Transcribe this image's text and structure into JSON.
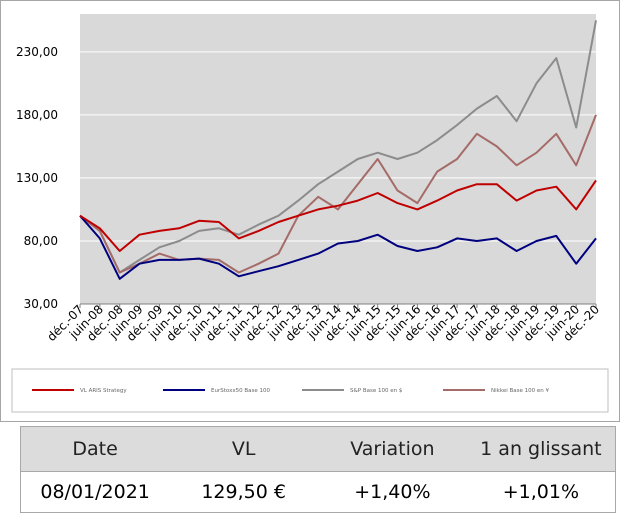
{
  "colors": {
    "plot_bg": "#d9d9d9",
    "vl_aris": "#c00000",
    "eurostoxx": "#00007f",
    "sp": "#8c8c8c",
    "nikkei": "#a56b68"
  },
  "chart_data": {
    "type": "line",
    "xlabel": "",
    "ylabel": "",
    "ylim": [
      30,
      260
    ],
    "grid": true,
    "legend_placement": "bottom",
    "y_ticks": [
      "30,00",
      "80,00",
      "130,00",
      "180,00",
      "230,00"
    ],
    "y_tick_values": [
      30,
      80,
      130,
      180,
      230
    ],
    "x_tick_labels": [
      "déc.-07",
      "juin-08",
      "déc.-08",
      "juin-09",
      "déc.-09",
      "juin-10",
      "déc.-10",
      "juin-11",
      "déc.-11",
      "juin-12",
      "déc.-12",
      "juin-13",
      "déc.-13",
      "juin-14",
      "déc.-14",
      "juin-15",
      "déc.-15",
      "juin-16",
      "déc.-16",
      "juin-17",
      "déc.-17",
      "juin-18",
      "déc.-18",
      "juin-19",
      "déc.-19",
      "juin-20",
      "déc.-20"
    ],
    "x": [
      "déc.-07",
      "juin-08",
      "déc.-08",
      "juin-09",
      "déc.-09",
      "juin-10",
      "déc.-10",
      "juin-11",
      "déc.-11",
      "juin-12",
      "déc.-12",
      "juin-13",
      "déc.-13",
      "juin-14",
      "déc.-14",
      "juin-15",
      "déc.-15",
      "juin-16",
      "déc.-16",
      "juin-17",
      "déc.-17",
      "juin-18",
      "déc.-18",
      "juin-19",
      "déc.-19",
      "juin-20",
      "déc.-20"
    ],
    "series": [
      {
        "name": "VL ARIS Strategy",
        "color_key": "vl_aris",
        "values": [
          100,
          90,
          72,
          85,
          88,
          90,
          96,
          95,
          82,
          88,
          95,
          100,
          105,
          108,
          112,
          118,
          110,
          105,
          112,
          120,
          125,
          125,
          112,
          120,
          123,
          105,
          128
        ]
      },
      {
        "name": "EurStoxx50 Base 100",
        "color_key": "eurostoxx",
        "values": [
          100,
          82,
          50,
          62,
          65,
          65,
          66,
          62,
          52,
          56,
          60,
          65,
          70,
          78,
          80,
          85,
          76,
          72,
          75,
          82,
          80,
          82,
          72,
          80,
          84,
          62,
          82
        ]
      },
      {
        "name": "S&P Base 100 en $",
        "color_key": "sp",
        "values": [
          100,
          88,
          55,
          65,
          75,
          80,
          88,
          90,
          85,
          93,
          100,
          112,
          125,
          135,
          145,
          150,
          145,
          150,
          160,
          172,
          185,
          195,
          175,
          205,
          225,
          170,
          255
        ]
      },
      {
        "name": "Nikkei Base 100 en ¥",
        "color_key": "nikkei",
        "values": [
          100,
          88,
          55,
          62,
          70,
          65,
          66,
          65,
          55,
          62,
          70,
          100,
          115,
          105,
          125,
          145,
          120,
          110,
          135,
          145,
          165,
          155,
          140,
          150,
          165,
          140,
          180
        ]
      }
    ]
  },
  "legend": [
    {
      "label": "VL ARIS Strategy",
      "color_key": "vl_aris"
    },
    {
      "label": "EurStoxx50 Base 100",
      "color_key": "eurostoxx"
    },
    {
      "label": "S&P Base 100 en $",
      "color_key": "sp"
    },
    {
      "label": "Nikkei Base 100 en ¥",
      "color_key": "nikkei"
    }
  ],
  "table": {
    "headers": [
      "Date",
      "VL",
      "Variation",
      "1 an glissant"
    ],
    "row": [
      "08/01/2021",
      "129,50 €",
      "+1,40%",
      "+1,01%"
    ]
  }
}
